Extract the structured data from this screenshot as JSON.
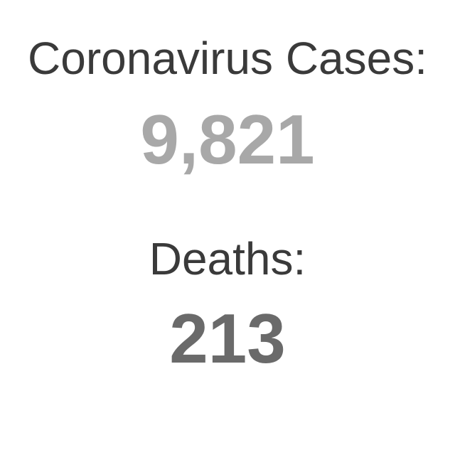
{
  "cases": {
    "label": "Coronavirus Cases:",
    "value": "9,821",
    "value_color": "#a8a8a8"
  },
  "deaths": {
    "label": "Deaths:",
    "value": "213",
    "value_color": "#6a6a6a"
  },
  "colors": {
    "background": "#ffffff",
    "label_text": "#3a3a3a"
  }
}
